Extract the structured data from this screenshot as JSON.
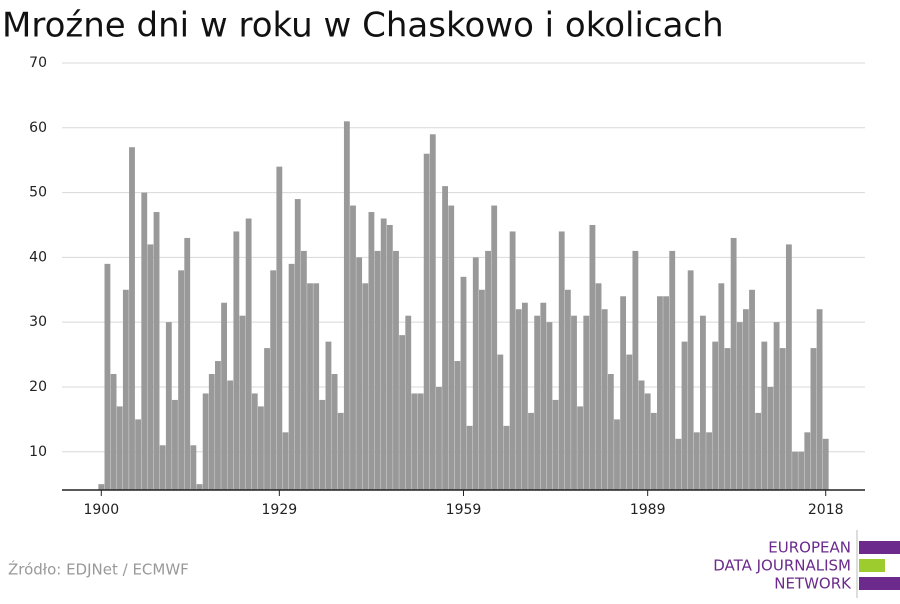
{
  "chart_data": {
    "type": "bar",
    "title": "Mroźne dni w roku w Chaskowo i okolicach",
    "x": [
      1900,
      1901,
      1902,
      1903,
      1904,
      1905,
      1906,
      1907,
      1908,
      1909,
      1910,
      1911,
      1912,
      1913,
      1914,
      1915,
      1916,
      1917,
      1918,
      1919,
      1920,
      1921,
      1922,
      1923,
      1924,
      1925,
      1926,
      1927,
      1928,
      1929,
      1930,
      1931,
      1932,
      1933,
      1934,
      1935,
      1936,
      1937,
      1938,
      1939,
      1940,
      1941,
      1942,
      1943,
      1944,
      1945,
      1946,
      1947,
      1948,
      1949,
      1950,
      1951,
      1952,
      1953,
      1954,
      1955,
      1956,
      1957,
      1958,
      1959,
      1960,
      1961,
      1962,
      1963,
      1964,
      1965,
      1966,
      1967,
      1968,
      1969,
      1970,
      1971,
      1972,
      1973,
      1974,
      1975,
      1976,
      1977,
      1978,
      1979,
      1980,
      1981,
      1982,
      1983,
      1984,
      1985,
      1986,
      1987,
      1988,
      1989,
      1990,
      1991,
      1992,
      1993,
      1994,
      1995,
      1996,
      1997,
      1998,
      1999,
      2000,
      2001,
      2002,
      2003,
      2004,
      2005,
      2006,
      2007,
      2008,
      2009,
      2010,
      2011,
      2012,
      2013,
      2014,
      2015,
      2016,
      2017,
      2018
    ],
    "values": [
      5,
      39,
      22,
      17,
      35,
      57,
      15,
      50,
      42,
      47,
      11,
      30,
      18,
      38,
      43,
      11,
      5,
      19,
      22,
      24,
      33,
      21,
      44,
      31,
      46,
      19,
      17,
      26,
      38,
      54,
      13,
      39,
      49,
      41,
      36,
      36,
      18,
      27,
      22,
      16,
      61,
      48,
      40,
      36,
      47,
      41,
      46,
      45,
      41,
      28,
      31,
      19,
      19,
      56,
      59,
      20,
      51,
      48,
      24,
      37,
      14,
      40,
      35,
      41,
      48,
      25,
      14,
      44,
      32,
      33,
      16,
      31,
      33,
      30,
      18,
      44,
      35,
      31,
      17,
      31,
      45,
      36,
      32,
      22,
      15,
      34,
      25,
      41,
      21,
      19,
      16,
      34,
      34,
      41,
      12,
      27,
      38,
      13,
      31,
      13,
      27,
      36,
      26,
      43,
      30,
      32,
      35,
      16,
      27,
      20,
      30,
      26,
      42,
      10,
      10,
      13,
      26,
      32,
      12
    ],
    "color": "#999999",
    "xlim": [
      1893.6,
      2024.4
    ],
    "xticks": [
      1900,
      1929,
      1959,
      1989,
      2018
    ],
    "ylim": [
      4.1,
      70
    ],
    "yticks": [
      10,
      20,
      30,
      40,
      50,
      60,
      70
    ],
    "grid": true
  },
  "footer": {
    "source": "Źródło: EDJNet / ECMWF",
    "logo": [
      "EUROPEAN",
      "DATA JOURNALISM",
      "NETWORK"
    ]
  }
}
